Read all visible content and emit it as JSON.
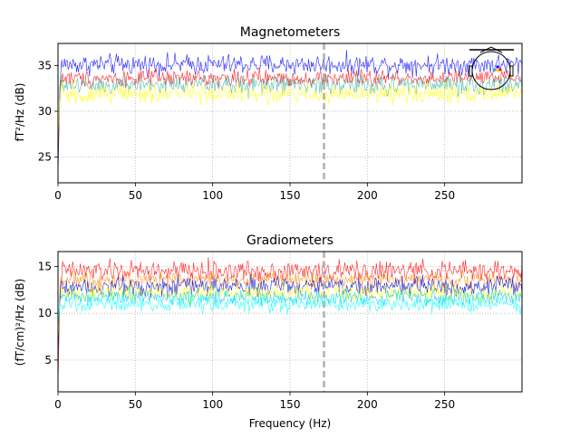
{
  "chart_data": [
    {
      "type": "line",
      "title": "Magnetometers",
      "xlabel": "",
      "ylabel": "fT²/Hz (dB)",
      "xlim": [
        0,
        300
      ],
      "ylim": [
        22.2,
        37.4
      ],
      "x_ticks": [
        "0",
        "50",
        "100",
        "150",
        "200",
        "250"
      ],
      "y_ticks": [
        "25",
        "30",
        "35"
      ],
      "grid": true,
      "marker_vline_x": 172,
      "sensor_layout_inset": true,
      "series": [
        {
          "color": "#0000ff",
          "level": 35.1,
          "noise": 0.55
        },
        {
          "color": "#ff0000",
          "level": 33.6,
          "noise": 0.45
        },
        {
          "color": "#40b0a0",
          "level": 32.9,
          "noise": 0.55
        },
        {
          "color": "#ffff00",
          "level": 31.9,
          "noise": 0.5
        }
      ]
    },
    {
      "type": "line",
      "title": "Gradiometers",
      "xlabel": "Frequency (Hz)",
      "ylabel": "(fT/cm)²/Hz (dB)",
      "xlim": [
        0,
        300
      ],
      "ylim": [
        1.6,
        16.6
      ],
      "x_ticks": [
        "0",
        "50",
        "100",
        "150",
        "200",
        "250"
      ],
      "y_ticks": [
        "5",
        "10",
        "15"
      ],
      "grid": true,
      "marker_vline_x": 172,
      "series": [
        {
          "color": "#ff0000",
          "level": 14.5,
          "noise": 0.55
        },
        {
          "color": "#ff8000",
          "level": 13.6,
          "noise": 0.4
        },
        {
          "color": "#0000cd",
          "level": 12.9,
          "noise": 0.5
        },
        {
          "color": "#ffff00",
          "level": 12.1,
          "noise": 0.45
        },
        {
          "color": "#00c8ff",
          "level": 11.7,
          "noise": 0.4
        },
        {
          "color": "#00ffff",
          "level": 11.0,
          "noise": 0.45
        }
      ]
    }
  ]
}
